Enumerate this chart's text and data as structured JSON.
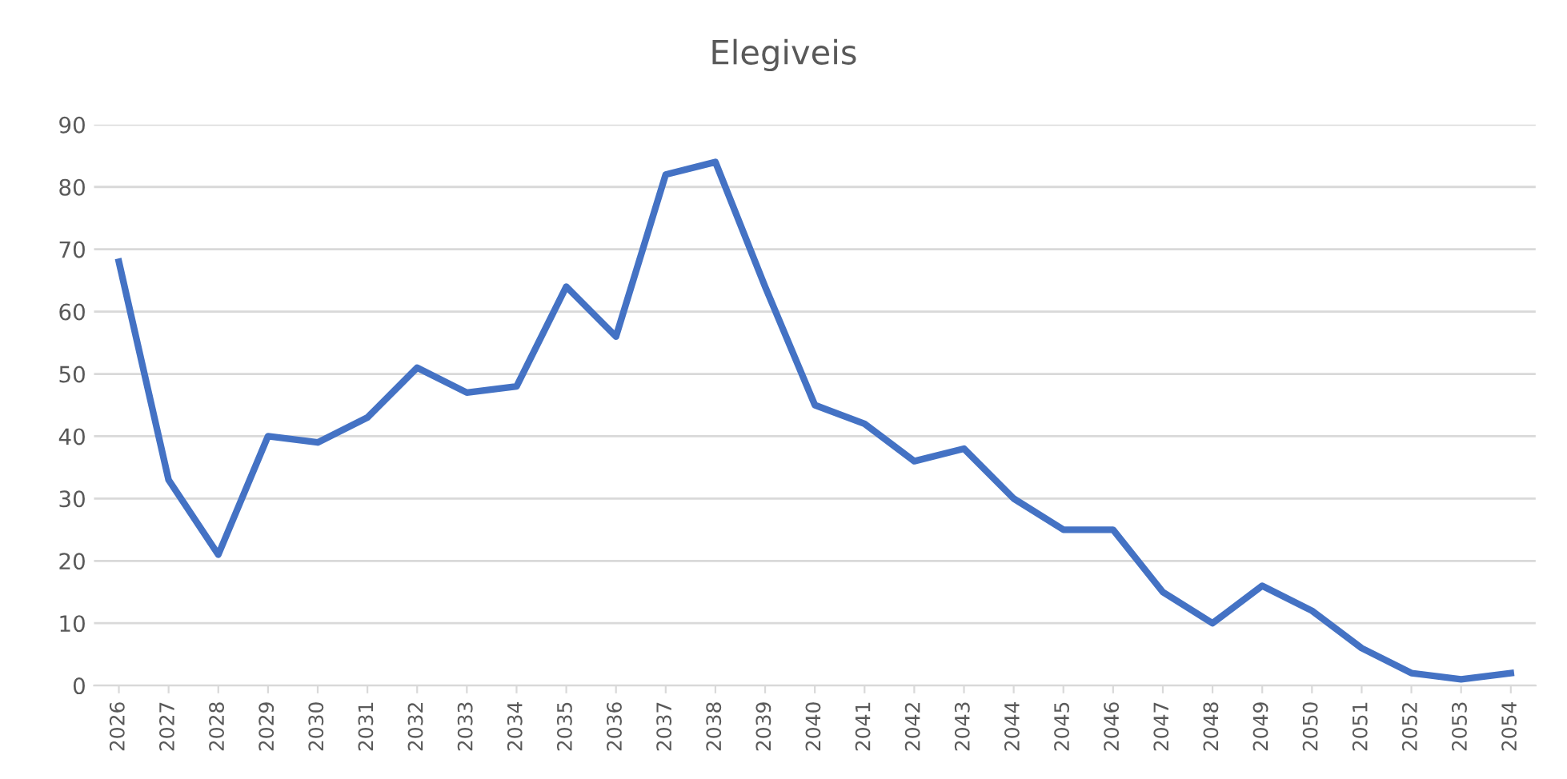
{
  "chart_data": {
    "type": "line",
    "title": "Elegiveis",
    "categories": [
      "2026",
      "2027",
      "2028",
      "2029",
      "2030",
      "2031",
      "2032",
      "2033",
      "2034",
      "2035",
      "2036",
      "2037",
      "2038",
      "2039",
      "2040",
      "2041",
      "2042",
      "2043",
      "2044",
      "2045",
      "2046",
      "2047",
      "2048",
      "2049",
      "2050",
      "2051",
      "2052",
      "2053",
      "2054"
    ],
    "series": [
      {
        "color": "#4472c4",
        "values": [
          68,
          33,
          21,
          40,
          39,
          43,
          51,
          47,
          48,
          64,
          56,
          82,
          84,
          64,
          45,
          42,
          36,
          38,
          30,
          25,
          25,
          15,
          10,
          16,
          12,
          6,
          2,
          1,
          2
        ]
      }
    ],
    "ylim": [
      0,
      90
    ],
    "yticks": [
      0,
      10,
      20,
      30,
      40,
      50,
      60,
      70,
      80,
      90
    ],
    "grid": "y",
    "marker": "none",
    "line_style": "solid"
  }
}
